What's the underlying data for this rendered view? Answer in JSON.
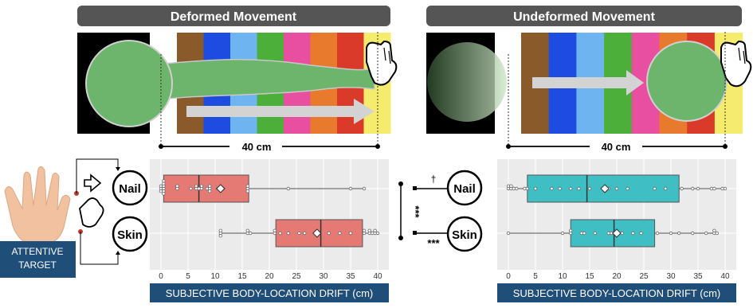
{
  "panels": {
    "left_title": "Deformed Movement",
    "right_title": "Undeformed Movement"
  },
  "distance_label": "40 cm",
  "targets": {
    "nail": "Nail",
    "skin": "Skin"
  },
  "attentive_target": "ATTENTIVE TARGET",
  "significance": {
    "top": "†",
    "bottom": "***",
    "vertical": "***"
  },
  "axis_caption": "SUBJECTIVE BODY-LOCATION DRIFT (cm)",
  "stripe_colors": [
    "#8B5A2B",
    "#1E4BE0",
    "#6EB4F0",
    "#4CAF3A",
    "#E84FA0",
    "#E87A2E",
    "#D93A2A",
    "#F5EC6E"
  ],
  "chart_data": [
    {
      "type": "box",
      "panel": "Deformed Movement",
      "xlabel": "SUBJECTIVE BODY-LOCATION DRIFT (cm)",
      "xlim": [
        0,
        40
      ],
      "xticks": [
        0,
        5,
        10,
        15,
        20,
        25,
        30,
        35,
        40
      ],
      "fill": "#E57A74",
      "categories": [
        "Nail",
        "Skin"
      ],
      "boxes": [
        {
          "name": "Nail",
          "whisker_low": 0,
          "q1": 0.5,
          "median": 7,
          "q3": 16.2,
          "whisker_high": 37.5,
          "mean": 11
        },
        {
          "name": "Skin",
          "whisker_low": 11,
          "q1": 21.2,
          "median": 29.5,
          "q3": 37.2,
          "whisker_high": 40,
          "mean": 28.8
        }
      ],
      "points": {
        "Nail": [
          0,
          0,
          0,
          0.5,
          0.5,
          0.5,
          0.5,
          0.5,
          0.5,
          3,
          3,
          5.5,
          6.5,
          6.5,
          7,
          7.5,
          7.5,
          8.5,
          9,
          9,
          9,
          10.5,
          11.5,
          16,
          16,
          16,
          23.5,
          35,
          37.5
        ],
        "Skin": [
          11,
          11,
          11,
          16,
          16,
          16.5,
          21,
          21,
          22,
          23.5,
          25.5,
          26.5,
          28.5,
          29,
          31,
          33,
          35,
          37.5,
          37.5,
          38.5,
          38.5,
          39,
          39.5,
          39.5,
          40
        ]
      }
    },
    {
      "type": "box",
      "panel": "Undeformed Movement",
      "xlabel": "SUBJECTIVE BODY-LOCATION DRIFT (cm)",
      "xlim": [
        0,
        40
      ],
      "xticks": [
        0,
        5,
        10,
        15,
        20,
        25,
        30,
        35,
        40
      ],
      "fill": "#3FBFC4",
      "categories": [
        "Nail",
        "Skin"
      ],
      "boxes": [
        {
          "name": "Nail",
          "whisker_low": 0,
          "q1": 3.5,
          "median": 14.5,
          "q3": 31.5,
          "whisker_high": 40,
          "mean": 17.8
        },
        {
          "name": "Skin",
          "whisker_low": 0,
          "q1": 11.5,
          "median": 19.5,
          "q3": 27,
          "whisker_high": 38.5,
          "mean": 20
        }
      ],
      "points": {
        "Nail": [
          0,
          0,
          0.5,
          0.5,
          1,
          1.5,
          3,
          3.5,
          5,
          8,
          9.5,
          11.5,
          13,
          15,
          18.5,
          20,
          22,
          27,
          29,
          32,
          34,
          35,
          37.5,
          38,
          39.5,
          40
        ],
        "Skin": [
          0,
          10,
          11.5,
          11.5,
          13.5,
          14,
          16,
          18.5,
          19,
          19.5,
          21,
          23,
          24.5,
          27.5,
          30,
          31.5,
          34,
          36.5,
          38,
          38,
          38.5
        ]
      }
    }
  ]
}
